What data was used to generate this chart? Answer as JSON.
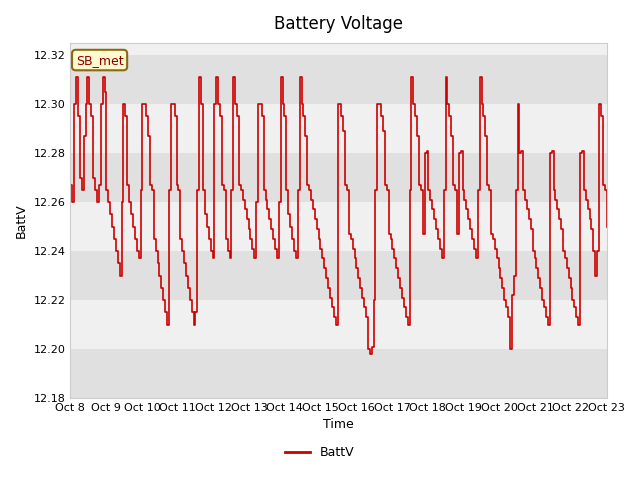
{
  "title": "Battery Voltage",
  "xlabel": "Time",
  "ylabel": "BattV",
  "legend_label": "BattV",
  "annotation": "SB_met",
  "ylim": [
    12.18,
    12.325
  ],
  "yticks": [
    12.18,
    12.2,
    12.22,
    12.24,
    12.26,
    12.28,
    12.3,
    12.32
  ],
  "line_color": "#cc0000",
  "line_width": 1.2,
  "bg_color": "#ffffff",
  "plot_bg": "#f0f0f0",
  "band_color": "#e0e0e0",
  "x_labels": [
    "Oct 8",
    "Oct 9",
    "Oct 10",
    "Oct 11",
    "Oct 12",
    "Oct 13",
    "Oct 14",
    "Oct 15",
    "Oct 16",
    "Oct 17",
    "Oct 18",
    "Oct 19",
    "Oct 20",
    "Oct 21",
    "Oct 22",
    "Oct 23"
  ],
  "data_y": [
    12.267,
    12.26,
    12.3,
    12.311,
    12.295,
    12.27,
    12.265,
    12.287,
    12.3,
    12.311,
    12.3,
    12.295,
    12.27,
    12.265,
    12.26,
    12.267,
    12.3,
    12.311,
    12.305,
    12.265,
    12.26,
    12.255,
    12.25,
    12.245,
    12.24,
    12.235,
    12.23,
    12.26,
    12.3,
    12.295,
    12.267,
    12.26,
    12.255,
    12.25,
    12.245,
    12.24,
    12.237,
    12.265,
    12.3,
    12.3,
    12.295,
    12.287,
    12.267,
    12.265,
    12.245,
    12.24,
    12.235,
    12.23,
    12.225,
    12.22,
    12.215,
    12.21,
    12.265,
    12.3,
    12.3,
    12.295,
    12.267,
    12.265,
    12.245,
    12.24,
    12.235,
    12.23,
    12.225,
    12.22,
    12.215,
    12.21,
    12.215,
    12.265,
    12.311,
    12.3,
    12.265,
    12.255,
    12.25,
    12.245,
    12.24,
    12.237,
    12.3,
    12.311,
    12.3,
    12.295,
    12.267,
    12.265,
    12.245,
    12.24,
    12.237,
    12.265,
    12.311,
    12.3,
    12.295,
    12.267,
    12.265,
    12.261,
    12.257,
    12.253,
    12.249,
    12.245,
    12.241,
    12.237,
    12.26,
    12.3,
    12.3,
    12.295,
    12.265,
    12.261,
    12.257,
    12.253,
    12.249,
    12.245,
    12.241,
    12.237,
    12.26,
    12.311,
    12.3,
    12.295,
    12.265,
    12.255,
    12.25,
    12.245,
    12.24,
    12.237,
    12.265,
    12.311,
    12.3,
    12.295,
    12.287,
    12.267,
    12.265,
    12.261,
    12.257,
    12.253,
    12.249,
    12.245,
    12.241,
    12.237,
    12.233,
    12.229,
    12.225,
    12.221,
    12.217,
    12.213,
    12.21,
    12.3,
    12.3,
    12.295,
    12.289,
    12.267,
    12.265,
    12.247,
    12.245,
    12.241,
    12.237,
    12.233,
    12.229,
    12.225,
    12.221,
    12.217,
    12.213,
    12.2,
    12.198,
    12.201,
    12.22,
    12.265,
    12.3,
    12.3,
    12.295,
    12.289,
    12.267,
    12.265,
    12.247,
    12.245,
    12.241,
    12.237,
    12.233,
    12.229,
    12.225,
    12.221,
    12.217,
    12.213,
    12.21,
    12.265,
    12.311,
    12.3,
    12.295,
    12.287,
    12.267,
    12.265,
    12.247,
    12.28,
    12.281,
    12.265,
    12.261,
    12.257,
    12.253,
    12.249,
    12.245,
    12.241,
    12.237,
    12.265,
    12.311,
    12.3,
    12.295,
    12.287,
    12.267,
    12.265,
    12.247,
    12.28,
    12.281,
    12.265,
    12.261,
    12.257,
    12.253,
    12.249,
    12.245,
    12.241,
    12.237,
    12.265,
    12.311,
    12.3,
    12.295,
    12.287,
    12.267,
    12.265,
    12.247,
    12.245,
    12.241,
    12.237,
    12.233,
    12.229,
    12.225,
    12.22,
    12.217,
    12.213,
    12.2,
    12.222,
    12.23,
    12.265,
    12.3,
    12.28,
    12.281,
    12.265,
    12.261,
    12.257,
    12.253,
    12.249,
    12.24,
    12.237,
    12.233,
    12.229,
    12.225,
    12.22,
    12.217,
    12.213,
    12.21,
    12.28,
    12.281,
    12.265,
    12.261,
    12.257,
    12.253,
    12.249,
    12.24,
    12.237,
    12.233,
    12.229,
    12.225,
    12.22,
    12.217,
    12.213,
    12.21,
    12.28,
    12.281,
    12.265,
    12.261,
    12.257,
    12.253,
    12.249,
    12.24,
    12.23,
    12.24,
    12.3,
    12.295,
    12.267,
    12.265,
    12.25
  ]
}
